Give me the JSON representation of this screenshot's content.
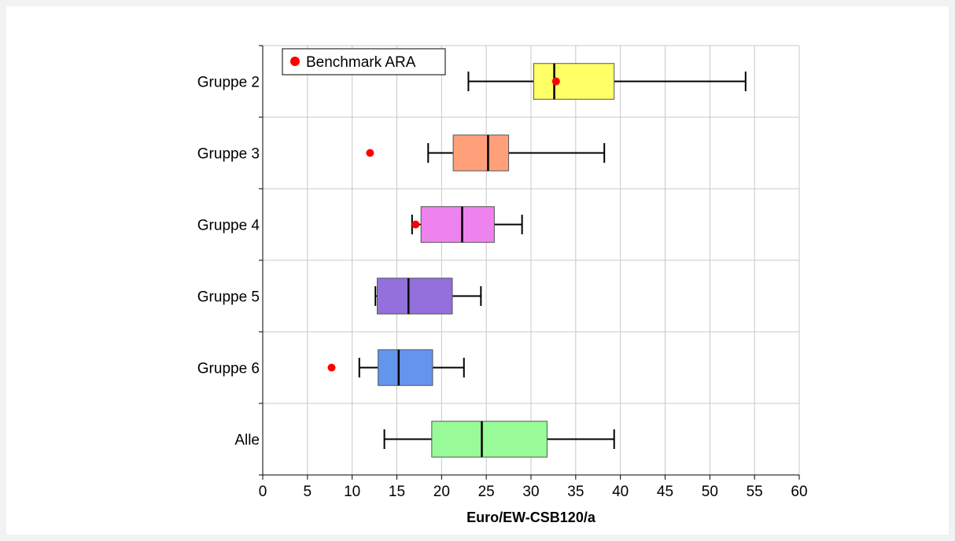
{
  "chart_data": {
    "type": "boxplot",
    "orientation": "horizontal",
    "title": "",
    "xlabel": "Euro/EW-CSB120/a",
    "ylabel": "",
    "xlim": [
      0,
      60
    ],
    "xticks": [
      0,
      5,
      10,
      15,
      20,
      25,
      30,
      35,
      40,
      45,
      50,
      55,
      60
    ],
    "grid": true,
    "legend": {
      "placement": "top-left",
      "entries": [
        {
          "label": "Benchmark ARA",
          "color": "#ff0000",
          "marker": "dot"
        }
      ]
    },
    "categories": [
      "Gruppe 2",
      "Gruppe 3",
      "Gruppe 4",
      "Gruppe 5",
      "Gruppe 6",
      "Alle"
    ],
    "boxes": [
      {
        "category": "Gruppe 2",
        "whisker_low": 23.0,
        "q1": 30.3,
        "median": 32.6,
        "q3": 39.3,
        "whisker_high": 54.0,
        "benchmark": 32.8,
        "color": "#ffff66"
      },
      {
        "category": "Gruppe 3",
        "whisker_low": 18.5,
        "q1": 21.3,
        "median": 25.2,
        "q3": 27.5,
        "whisker_high": 38.2,
        "benchmark": 12.0,
        "color": "#ffa07a"
      },
      {
        "category": "Gruppe 4",
        "whisker_low": 16.7,
        "q1": 17.7,
        "median": 22.3,
        "q3": 25.9,
        "whisker_high": 29.0,
        "benchmark": 17.1,
        "color": "#ee82ee"
      },
      {
        "category": "Gruppe 5",
        "whisker_low": 12.6,
        "q1": 12.8,
        "median": 16.3,
        "q3": 21.2,
        "whisker_high": 24.4,
        "benchmark": null,
        "color": "#9370db"
      },
      {
        "category": "Gruppe 6",
        "whisker_low": 10.8,
        "q1": 12.9,
        "median": 15.2,
        "q3": 19.0,
        "whisker_high": 22.5,
        "benchmark": 7.7,
        "color": "#6495ed"
      },
      {
        "category": "Alle",
        "whisker_low": 13.6,
        "q1": 18.9,
        "median": 24.5,
        "q3": 31.8,
        "whisker_high": 39.3,
        "benchmark": null,
        "color": "#98fb98"
      }
    ]
  }
}
